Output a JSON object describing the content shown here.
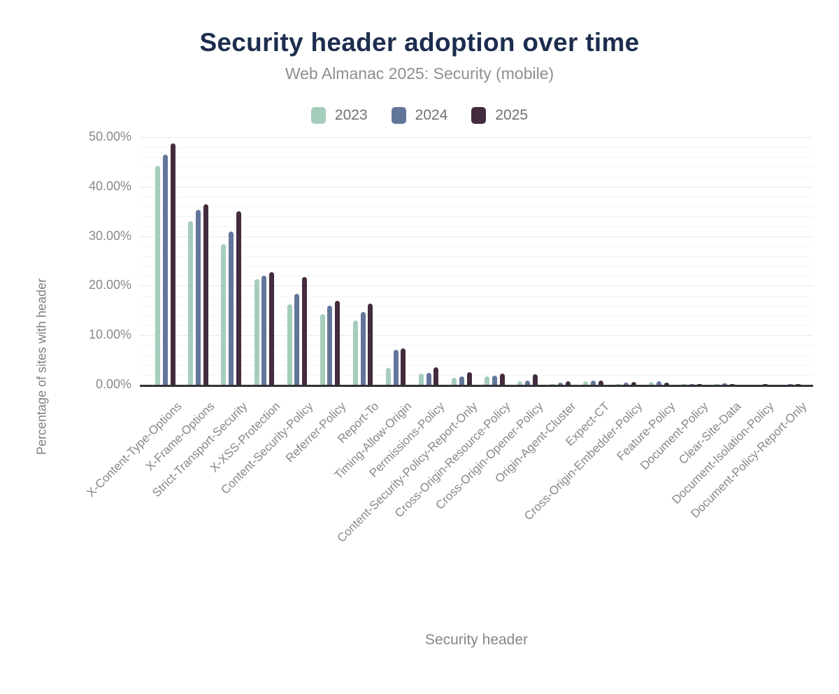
{
  "header": {
    "title": "Security header adoption over time",
    "subtitle": "Web Almanac 2025: Security (mobile)"
  },
  "chart_data": {
    "type": "bar",
    "title": "Security header adoption over time",
    "subtitle": "Web Almanac 2025: Security (mobile)",
    "xlabel": "Security header",
    "ylabel": "Percentage of sites with header",
    "ylim": [
      0,
      50
    ],
    "y_ticks": [
      "0.00%",
      "10.00%",
      "20.00%",
      "30.00%",
      "40.00%",
      "50.00%"
    ],
    "grid": "horizontal, minor every 2%, major every 10%",
    "legend_position": "top",
    "categories": [
      "X-Content-Type-Options",
      "X-Frame-Options",
      "Strict-Transport-Security",
      "X-XSS-Protection",
      "Content-Security-Policy",
      "Referrer-Policy",
      "Report-To",
      "Timing-Allow-Origin",
      "Permissions-Policy",
      "Content-Security-Policy-Report-Only",
      "Cross-Origin-Resource-Policy",
      "Cross-Origin-Opener-Policy",
      "Origin-Agent-Cluster",
      "Expect-CT",
      "Cross-Origin-Embedder-Policy",
      "Feature-Policy",
      "Document-Policy",
      "Clear-Site-Data",
      "Document-Isolation-Policy",
      "Document-Policy-Report-Only"
    ],
    "series": [
      {
        "name": "2023",
        "color": "#a5cdbc",
        "values": [
          44.2,
          33.1,
          28.4,
          21.4,
          16.3,
          14.2,
          13.0,
          3.4,
          2.3,
          1.4,
          1.7,
          0.7,
          0.2,
          0.7,
          0.2,
          0.6,
          0.1,
          0.15,
          0.0,
          0.05
        ]
      },
      {
        "name": "2024",
        "color": "#62769a",
        "values": [
          46.5,
          35.3,
          31.0,
          22.0,
          18.3,
          15.9,
          14.7,
          7.0,
          2.4,
          1.7,
          1.9,
          0.9,
          0.4,
          0.9,
          0.4,
          0.7,
          0.15,
          0.25,
          0.0,
          0.1
        ]
      },
      {
        "name": "2025",
        "color": "#432c3e",
        "values": [
          48.7,
          36.4,
          35.0,
          22.8,
          21.7,
          16.9,
          16.4,
          7.3,
          3.6,
          2.5,
          2.3,
          2.1,
          0.75,
          0.8,
          0.6,
          0.4,
          0.1,
          0.15,
          0.1,
          0.1
        ]
      }
    ]
  },
  "colors": {
    "title": "#1d2d4e",
    "subtitle": "#8c8f93",
    "axis_text": "#86898e",
    "grid_major": "#e9e9eb",
    "grid_minor": "#f4f4f6",
    "axis_line": "#323236",
    "background": "#ffffff"
  }
}
